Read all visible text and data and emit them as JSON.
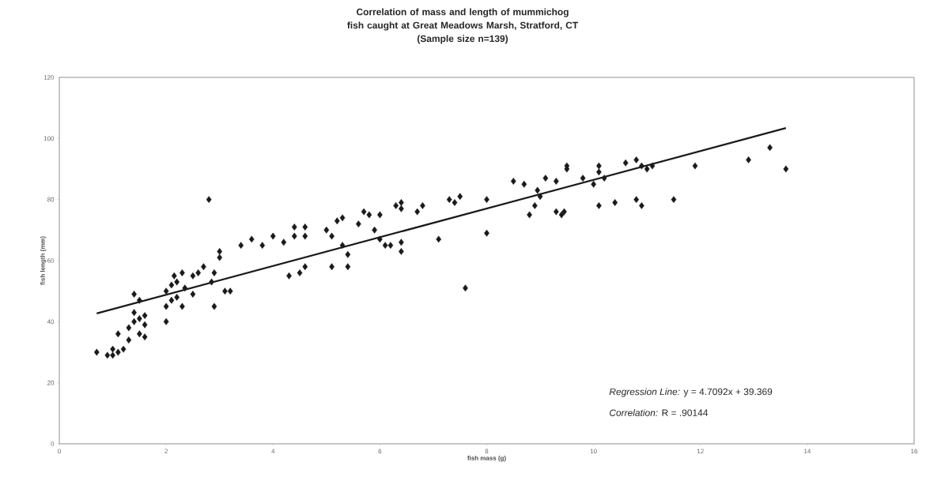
{
  "chart_data": {
    "type": "scatter",
    "title": "Correlation of mass and length of mummichog fish caught at Great Meadows Marsh, Stratford, CT",
    "subtitle": "(Sample size n=139)",
    "xlabel": "fish mass (g)",
    "ylabel": "fish length (mm)",
    "xlim": [
      0,
      16
    ],
    "xticks": [
      0,
      2,
      4,
      6,
      8,
      10,
      12,
      14,
      16
    ],
    "ylim": [
      0,
      120
    ],
    "yticks": [
      0,
      20,
      40,
      60,
      80,
      100,
      120
    ],
    "grid": false,
    "marker": "diamond",
    "series": [
      {
        "color": "#1a1a1a",
        "x": [
          0.7,
          0.9,
          1.0,
          1.0,
          1.1,
          1.1,
          1.2,
          1.3,
          1.3,
          1.4,
          1.4,
          1.4,
          1.5,
          1.5,
          1.5,
          1.6,
          1.6,
          1.6,
          2.0,
          2.0,
          2.0,
          2.1,
          2.1,
          2.15,
          2.2,
          2.2,
          2.3,
          2.3,
          2.35,
          2.5,
          2.5,
          2.6,
          2.7,
          2.8,
          2.85,
          2.9,
          2.9,
          3.0,
          3.0,
          3.1,
          3.2,
          3.4,
          3.6,
          3.8,
          4.0,
          4.2,
          4.3,
          4.4,
          4.4,
          4.5,
          4.6,
          4.6,
          4.6,
          5.0,
          5.1,
          5.1,
          5.2,
          5.3,
          5.3,
          5.4,
          5.4,
          5.6,
          5.7,
          5.8,
          5.9,
          6.0,
          6.0,
          6.1,
          6.2,
          6.3,
          6.4,
          6.4,
          6.4,
          6.4,
          6.7,
          6.8,
          7.1,
          7.3,
          7.4,
          7.5,
          7.6,
          8.0,
          8.0,
          8.5,
          8.7,
          8.8,
          8.9,
          8.95,
          9.0,
          9.1,
          9.3,
          9.3,
          9.4,
          9.45,
          9.5,
          9.5,
          9.8,
          10.0,
          10.1,
          10.1,
          10.1,
          10.2,
          10.4,
          10.6,
          10.8,
          10.8,
          10.9,
          10.9,
          11.0,
          11.1,
          11.5,
          11.9,
          12.9,
          13.3,
          13.6
        ],
        "values": [
          30,
          29,
          29,
          31,
          30,
          36,
          31,
          38,
          34,
          40,
          43,
          49,
          47,
          41,
          36,
          35,
          39,
          42,
          45,
          40,
          50,
          52,
          47,
          55,
          53,
          48,
          56,
          45,
          51,
          49,
          55,
          56,
          58,
          80,
          53,
          56,
          45,
          61,
          63,
          50,
          50,
          65,
          67,
          65,
          68,
          66,
          55,
          68,
          71,
          56,
          58,
          68,
          71,
          70,
          68,
          58,
          73,
          74,
          65,
          62,
          58,
          72,
          76,
          75,
          70,
          75,
          67,
          65,
          65,
          78,
          79,
          77,
          66,
          63,
          76,
          78,
          67,
          80,
          79,
          81,
          51,
          80,
          69,
          86,
          85,
          75,
          78,
          83,
          81,
          87,
          86,
          76,
          75,
          76,
          90,
          91,
          87,
          85,
          91,
          89,
          78,
          87,
          79,
          92,
          93,
          80,
          78,
          91,
          90,
          91,
          80,
          91,
          93,
          97,
          90
        ]
      },
      {
        "type": "line",
        "color": "#1a1a1a",
        "marker": "none",
        "line_style": "solid",
        "x": [
          0.7,
          13.6
        ],
        "values": [
          42.7,
          103.4
        ]
      }
    ],
    "annotations": [
      "*Regression Line:* y = 4.7092x + 39.369",
      "*Correlation:* R = .90144"
    ]
  }
}
